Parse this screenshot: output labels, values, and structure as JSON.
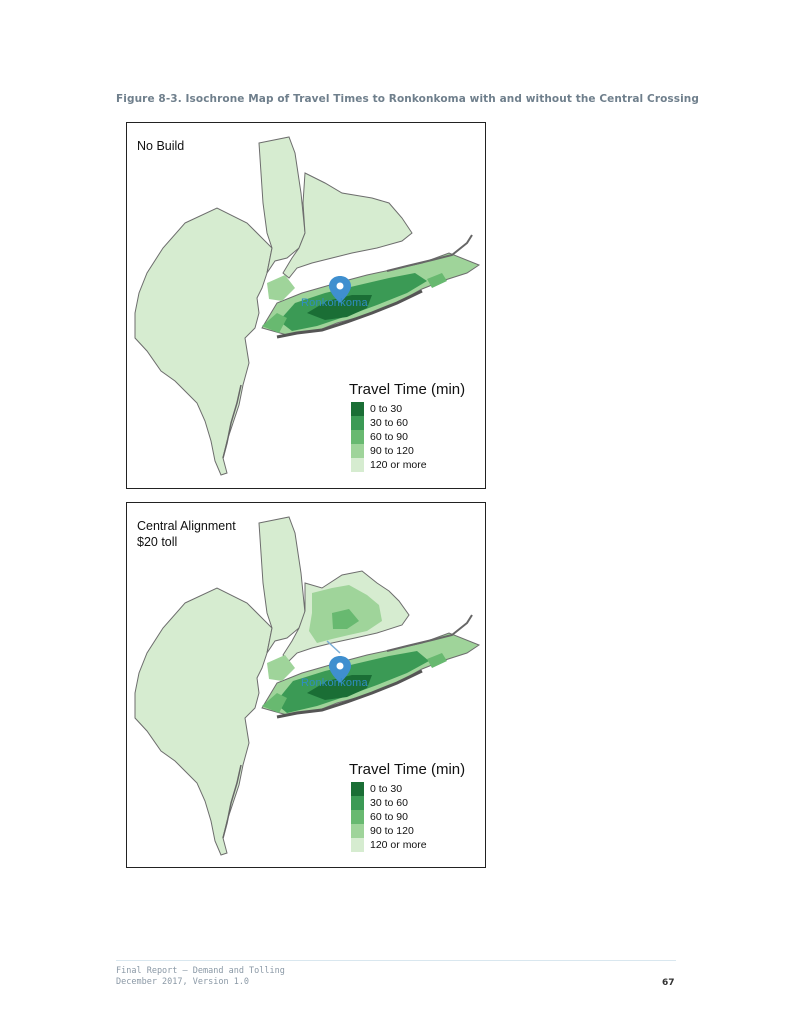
{
  "figure_caption": "Figure 8-3.   Isochrone Map of Travel Times to Ronkonkoma with and without the Central Crossing",
  "colors": {
    "0 to 30": "#1a6e35",
    "30 to 60": "#3b9a55",
    "60 to 90": "#68b970",
    "90 to 120": "#9fd49a",
    "120 or more": "#d6ecd0",
    "outline": "#6d6d6d",
    "marker": "#3f8fcf"
  },
  "panels": [
    {
      "title_lines": [
        "No Build"
      ],
      "place_label": "Ronkonkoma",
      "legend": {
        "title": "Travel Time (min)",
        "items": [
          {
            "label": "0 to 30",
            "color": "#1a6e35"
          },
          {
            "label": "30 to 60",
            "color": "#3b9a55"
          },
          {
            "label": "60 to 90",
            "color": "#68b970"
          },
          {
            "label": "90 to 120",
            "color": "#9fd49a"
          },
          {
            "label": "120 or more",
            "color": "#d6ecd0"
          }
        ]
      }
    },
    {
      "title_lines": [
        "Central Alignment",
        "$20 toll"
      ],
      "place_label": "Ronkonkoma",
      "legend": {
        "title": "Travel Time (min)",
        "items": [
          {
            "label": "0 to 30",
            "color": "#1a6e35"
          },
          {
            "label": "30 to 60",
            "color": "#3b9a55"
          },
          {
            "label": "60 to 90",
            "color": "#68b970"
          },
          {
            "label": "90 to 120",
            "color": "#9fd49a"
          },
          {
            "label": "120 or more",
            "color": "#d6ecd0"
          }
        ]
      }
    }
  ],
  "footer": {
    "line1": "Final Report — Demand and Tolling",
    "line2": "December 2017, Version 1.0",
    "page_number": "67"
  }
}
